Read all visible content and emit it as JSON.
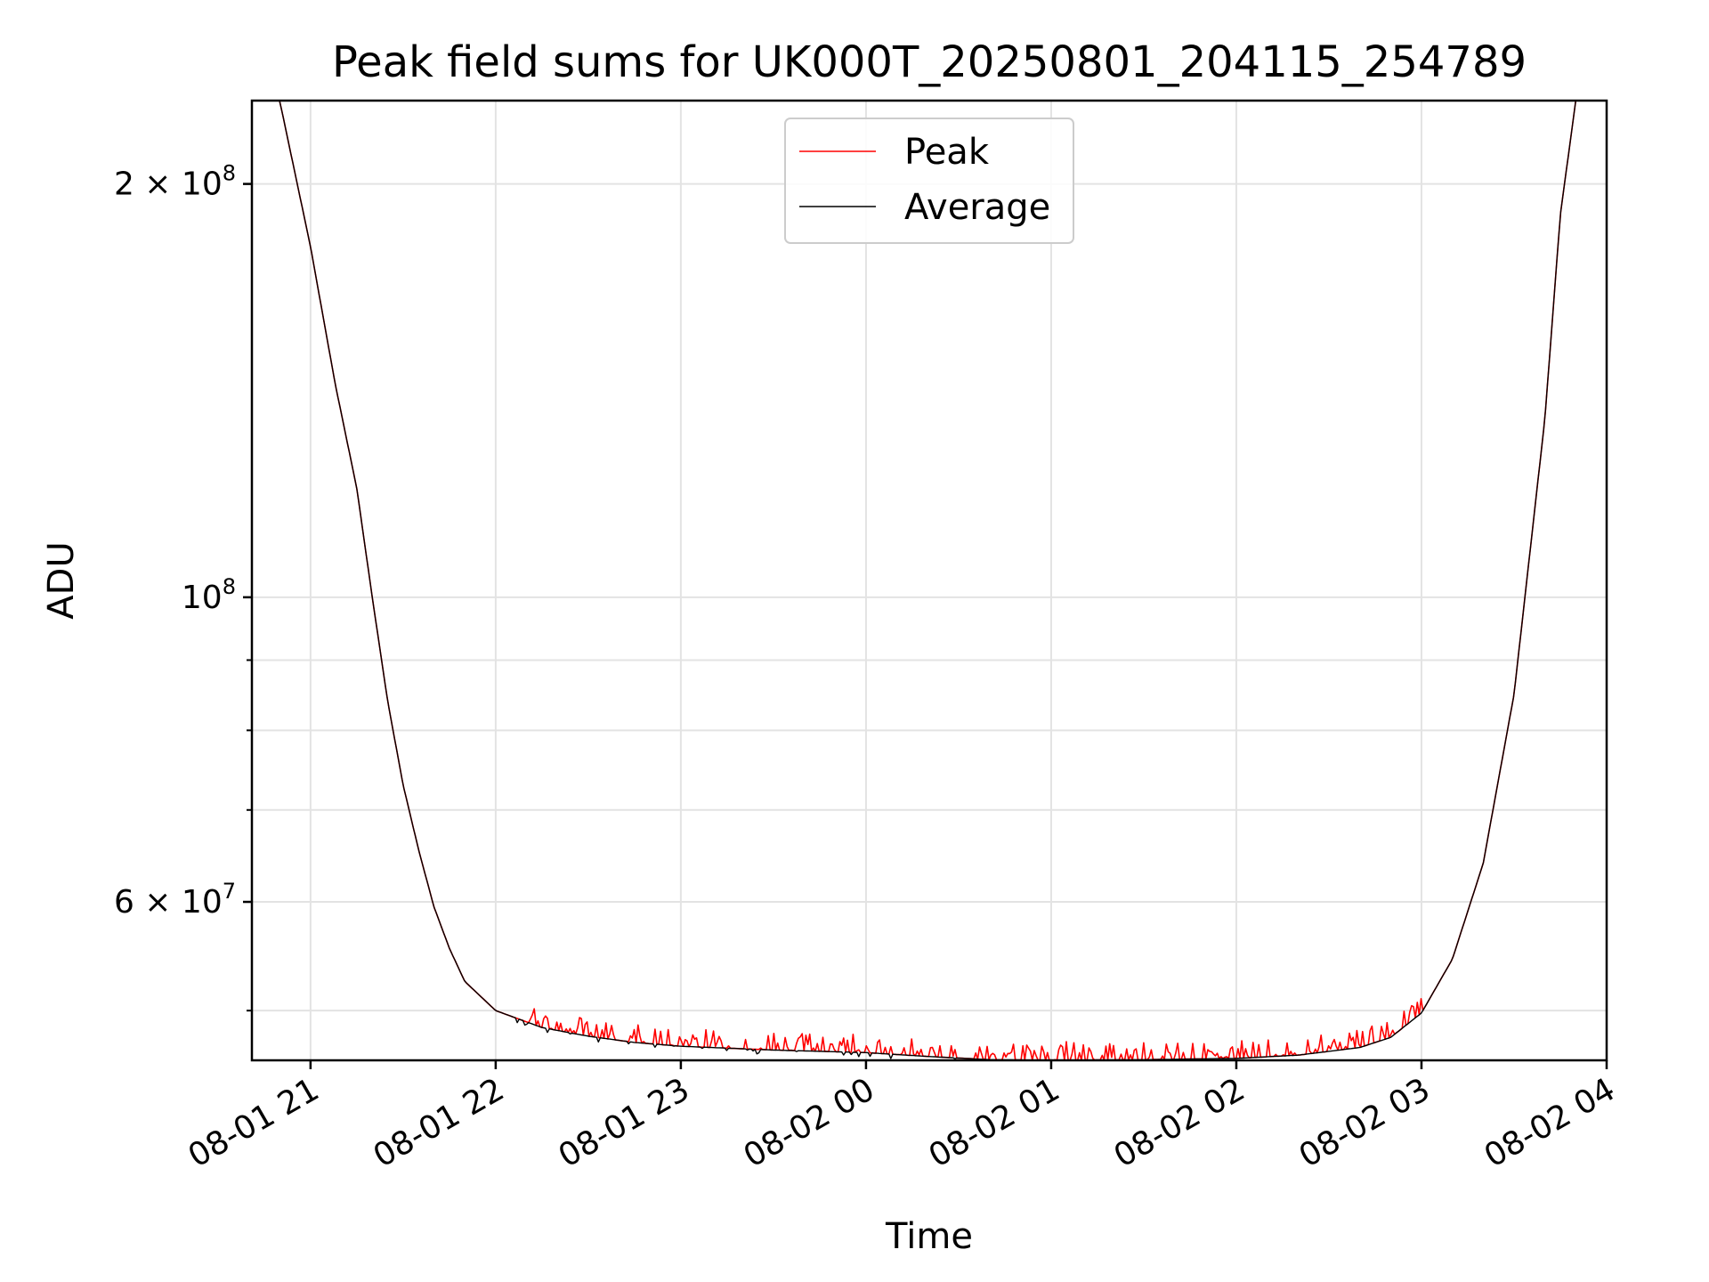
{
  "chart_data": {
    "type": "line",
    "title": "Peak field sums for UK000T_20250801_204115_254789",
    "xlabel": "Time",
    "ylabel": "ADU",
    "y_scale": "log",
    "xlim": [
      "2025-08-01 20:41",
      "2025-08-02 04:00"
    ],
    "ylim": [
      46000000,
      230000000
    ],
    "x_ticks": [
      "08-01 21",
      "08-01 22",
      "08-01 23",
      "08-02 00",
      "08-02 01",
      "08-02 02",
      "08-02 03",
      "08-02 04"
    ],
    "y_major_ticks": [
      {
        "value": 200000000,
        "mantissa": "2",
        "exponent": "8"
      },
      {
        "value": 100000000,
        "mantissa": "",
        "exponent": "8"
      },
      {
        "value": 60000000,
        "mantissa": "6",
        "exponent": "7"
      }
    ],
    "y_minor_gridlines": [
      50000000,
      70000000,
      80000000,
      90000000
    ],
    "grid": true,
    "legend_position": "top-center",
    "series": [
      {
        "name": "Peak",
        "color": "#ff0000",
        "x": [
          "2025-08-01 20:42",
          "2025-08-01 20:50",
          "2025-08-01 21:00",
          "2025-08-01 21:08",
          "2025-08-01 21:15",
          "2025-08-01 21:20",
          "2025-08-01 21:25",
          "2025-08-01 21:30",
          "2025-08-01 21:35",
          "2025-08-01 21:40",
          "2025-08-01 21:45",
          "2025-08-01 21:50",
          "2025-08-01 22:00",
          "2025-08-01 22:15",
          "2025-08-01 22:30",
          "2025-08-01 22:45",
          "2025-08-01 23:00",
          "2025-08-01 23:30",
          "2025-08-02 00:00",
          "2025-08-02 00:20",
          "2025-08-02 00:40",
          "2025-08-02 01:00",
          "2025-08-02 01:30",
          "2025-08-02 02:00",
          "2025-08-02 02:20",
          "2025-08-02 02:40",
          "2025-08-02 02:50",
          "2025-08-02 03:00",
          "2025-08-02 03:10",
          "2025-08-02 03:20",
          "2025-08-02 03:30",
          "2025-08-02 03:40",
          "2025-08-02 03:45",
          "2025-08-02 03:50"
        ],
        "y": [
          230000000,
          230000000,
          180000000,
          143000000,
          120000000,
          100000000,
          84000000,
          73000000,
          65500000,
          59500000,
          55500000,
          52500000,
          50000000,
          48600000,
          47900000,
          47400000,
          47100000,
          46800000,
          46600000,
          46300000,
          46050000,
          46000000,
          46050000,
          46150000,
          46400000,
          47000000,
          47800000,
          49800000,
          54500000,
          64000000,
          85000000,
          135000000,
          190000000,
          230000000
        ],
        "noise_spikes": {
          "from": "2025-08-01 22:10",
          "to": "2025-08-02 03:00",
          "amplitude_max": 1500000
        }
      },
      {
        "name": "Average",
        "color": "#000000",
        "x": [
          "2025-08-01 20:42",
          "2025-08-01 20:50",
          "2025-08-01 21:00",
          "2025-08-01 21:08",
          "2025-08-01 21:15",
          "2025-08-01 21:20",
          "2025-08-01 21:25",
          "2025-08-01 21:30",
          "2025-08-01 21:35",
          "2025-08-01 21:40",
          "2025-08-01 21:45",
          "2025-08-01 21:50",
          "2025-08-01 22:00",
          "2025-08-01 22:15",
          "2025-08-01 22:30",
          "2025-08-01 22:45",
          "2025-08-01 23:00",
          "2025-08-01 23:30",
          "2025-08-02 00:00",
          "2025-08-02 00:20",
          "2025-08-02 00:40",
          "2025-08-02 01:00",
          "2025-08-02 01:30",
          "2025-08-02 02:00",
          "2025-08-02 02:20",
          "2025-08-02 02:40",
          "2025-08-02 02:50",
          "2025-08-02 03:00",
          "2025-08-02 03:10",
          "2025-08-02 03:20",
          "2025-08-02 03:30",
          "2025-08-02 03:40",
          "2025-08-02 03:45",
          "2025-08-02 03:50"
        ],
        "y": [
          230000000,
          230000000,
          180000000,
          143000000,
          120000000,
          100000000,
          84000000,
          73000000,
          65500000,
          59500000,
          55500000,
          52500000,
          50000000,
          48600000,
          47900000,
          47400000,
          47100000,
          46800000,
          46600000,
          46300000,
          46050000,
          46000000,
          46050000,
          46150000,
          46400000,
          47000000,
          47800000,
          49800000,
          54500000,
          64000000,
          85000000,
          135000000,
          190000000,
          230000000
        ]
      }
    ]
  }
}
